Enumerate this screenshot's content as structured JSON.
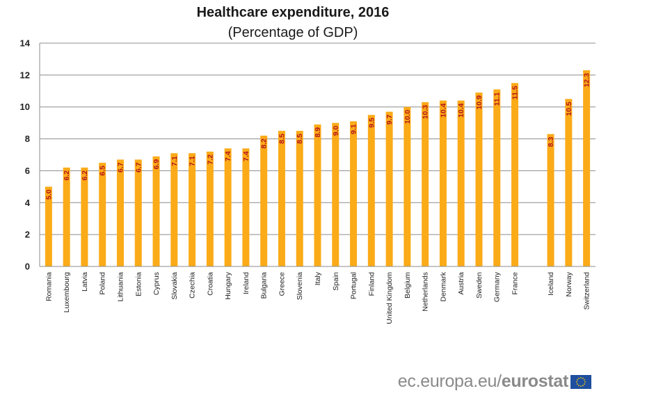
{
  "chart_data": {
    "type": "bar",
    "title": "Healthcare expenditure, 2016",
    "subtitle": "(Percentage of GDP)",
    "xlabel": "",
    "ylabel": "",
    "ylim": [
      0,
      14
    ],
    "yticks": [
      0,
      2,
      4,
      6,
      8,
      10,
      12,
      14
    ],
    "grid": true,
    "bar_color": "#fbab18",
    "label_color": "#b5121b",
    "groups": [
      {
        "categories": [
          "Romania",
          "Luxembourg",
          "Latvia",
          "Poland",
          "Lithuania",
          "Estonia",
          "Cyprus",
          "Slovakia",
          "Czechia",
          "Croatia",
          "Hungary",
          "Ireland",
          "Bulgaria",
          "Greece",
          "Slovenia",
          "Italy",
          "Spain",
          "Portugal",
          "Finland",
          "United Kingdom",
          "Belgium",
          "Netherlands",
          "Denmark",
          "Austria",
          "Sweden",
          "Germany",
          "France"
        ],
        "values": [
          5.0,
          6.2,
          6.2,
          6.5,
          6.7,
          6.7,
          6.9,
          7.1,
          7.1,
          7.2,
          7.4,
          7.4,
          8.2,
          8.5,
          8.5,
          8.9,
          9.0,
          9.1,
          9.5,
          9.7,
          10.0,
          10.3,
          10.4,
          10.4,
          10.9,
          11.1,
          11.5
        ],
        "labels": [
          "5.0",
          "6.2",
          "6.2",
          "6.5",
          "6.7",
          "6.7",
          "6.9",
          "7.1",
          "7.1",
          "7.2",
          "7.4",
          "7.4",
          "8.2",
          "8.5",
          "8.5",
          "8.9",
          "9.0",
          "9.1",
          "9.5",
          "9.7",
          "10.0",
          "10.3",
          "10.4",
          "10.4",
          "10.9",
          "11.1",
          "11.5"
        ]
      },
      {
        "categories": [
          "Iceland",
          "Norway",
          "Switzerland"
        ],
        "values": [
          8.3,
          10.5,
          12.3
        ],
        "labels": [
          "8.3",
          "10.5",
          "12.3"
        ]
      }
    ]
  },
  "footer": {
    "domain_text": "ec.europa.eu/",
    "brand_text": "eurostat"
  },
  "colors": {
    "flag_blue": "#1f4f9e",
    "flag_star": "#ffd200",
    "brand_gray": "#8a8a8a"
  }
}
